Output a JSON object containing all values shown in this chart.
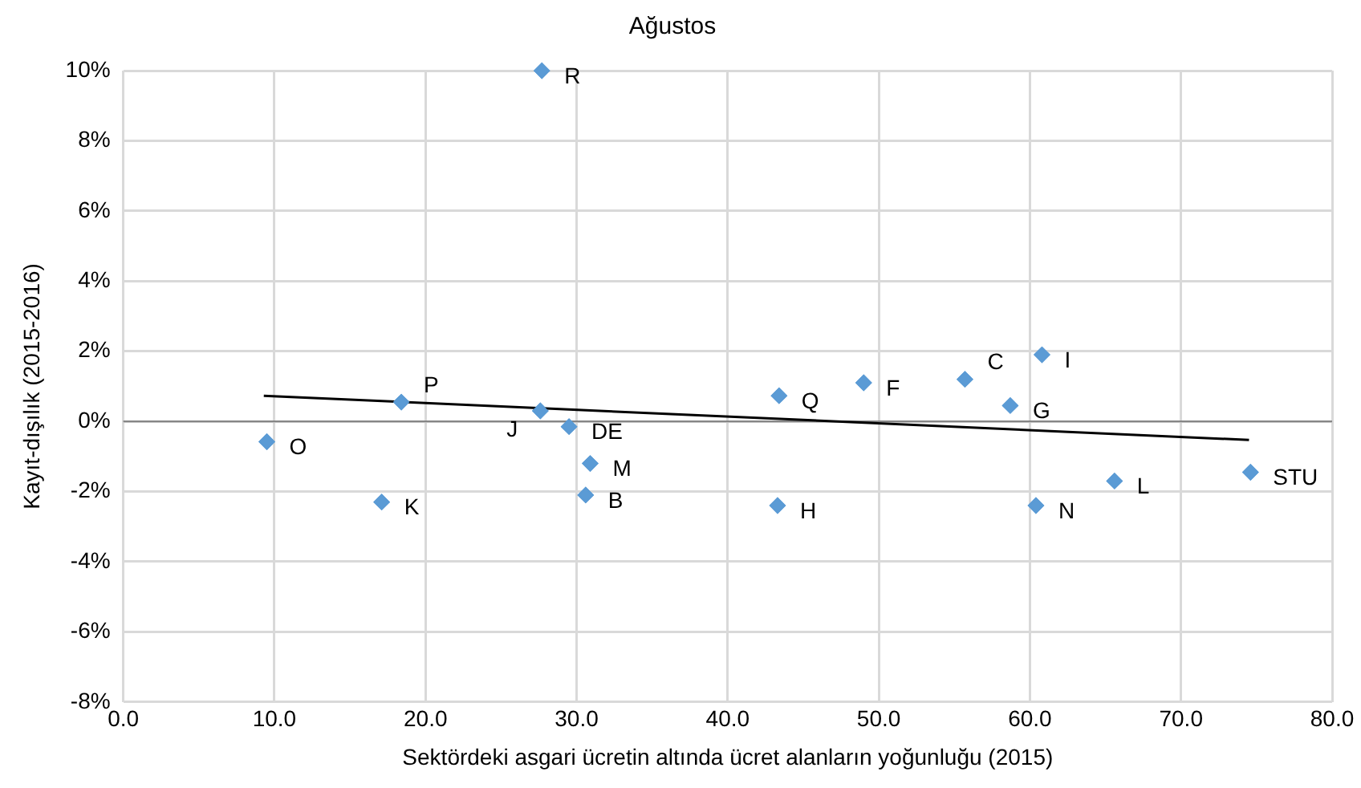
{
  "chart_data": {
    "type": "scatter",
    "title": "Ağustos",
    "xlabel": "Sektördeki asgari ücretin altında ücret alanların yoğunluğu (2015)",
    "ylabel": "Kayıt-dışılık (2015-2016)",
    "xlim": [
      0,
      80
    ],
    "xticks": [
      {
        "value": 0,
        "label": "0.0"
      },
      {
        "value": 10,
        "label": "10.0"
      },
      {
        "value": 20,
        "label": "20.0"
      },
      {
        "value": 30,
        "label": "30.0"
      },
      {
        "value": 40,
        "label": "40.0"
      },
      {
        "value": 50,
        "label": "50.0"
      },
      {
        "value": 60,
        "label": "60.0"
      },
      {
        "value": 70,
        "label": "70.0"
      },
      {
        "value": 80,
        "label": "80.0"
      }
    ],
    "ylim": [
      -8,
      10
    ],
    "yticks": [
      {
        "value": -8,
        "label": "-8%"
      },
      {
        "value": -6,
        "label": "-6%"
      },
      {
        "value": -4,
        "label": "-4%"
      },
      {
        "value": -2,
        "label": "-2%"
      },
      {
        "value": 0,
        "label": "0%"
      },
      {
        "value": 2,
        "label": "2%"
      },
      {
        "value": 4,
        "label": "4%"
      },
      {
        "value": 6,
        "label": "6%"
      },
      {
        "value": 8,
        "label": "8%"
      },
      {
        "value": 10,
        "label": "10%"
      }
    ],
    "grid": true,
    "marker": "diamond",
    "ref_lines": [
      {
        "axis": "y",
        "value": 0,
        "color": "#868686"
      }
    ],
    "series": [
      {
        "type": "scatter",
        "color": "#5b9bd5",
        "x": [
          27.7,
          60.8,
          55.7,
          58.7,
          49.0,
          43.4,
          18.4,
          27.6,
          29.5,
          30.9,
          30.6,
          17.1,
          9.5,
          43.3,
          60.4,
          65.6,
          74.6
        ],
        "values": [
          10,
          1.9,
          1.2,
          0.45,
          1.1,
          0.73,
          0.55,
          0.3,
          -0.15,
          -1.2,
          -2.1,
          -2.3,
          -0.58,
          -2.4,
          -2.4,
          -1.7,
          -1.45
        ]
      },
      {
        "type": "line",
        "color": "#000000",
        "marker": "none",
        "x": [
          9.3,
          74.5
        ],
        "values": [
          0.73,
          -0.53
        ]
      }
    ],
    "annotations": [
      {
        "text": "R",
        "x": 27.7,
        "y": 10
      },
      {
        "text": "I",
        "x": 60.8,
        "y": 1.9
      },
      {
        "text": "C",
        "x": 55.7,
        "y": 1.2
      },
      {
        "text": "G",
        "x": 58.7,
        "y": 0.45
      },
      {
        "text": "F",
        "x": 49.0,
        "y": 1.1
      },
      {
        "text": "Q",
        "x": 43.4,
        "y": 0.73
      },
      {
        "text": "P",
        "x": 18.4,
        "y": 0.55
      },
      {
        "text": "J",
        "x": 27.6,
        "y": 0.3
      },
      {
        "text": "DE",
        "x": 29.5,
        "y": -0.15
      },
      {
        "text": "M",
        "x": 30.9,
        "y": -1.2
      },
      {
        "text": "B",
        "x": 30.6,
        "y": -2.1
      },
      {
        "text": "K",
        "x": 17.1,
        "y": -2.3
      },
      {
        "text": "O",
        "x": 9.5,
        "y": -0.58
      },
      {
        "text": "H",
        "x": 43.3,
        "y": -2.4
      },
      {
        "text": "N",
        "x": 60.4,
        "y": -2.4
      },
      {
        "text": "L",
        "x": 65.6,
        "y": -1.7
      },
      {
        "text": "STU",
        "x": 74.6,
        "y": -1.45
      }
    ]
  }
}
